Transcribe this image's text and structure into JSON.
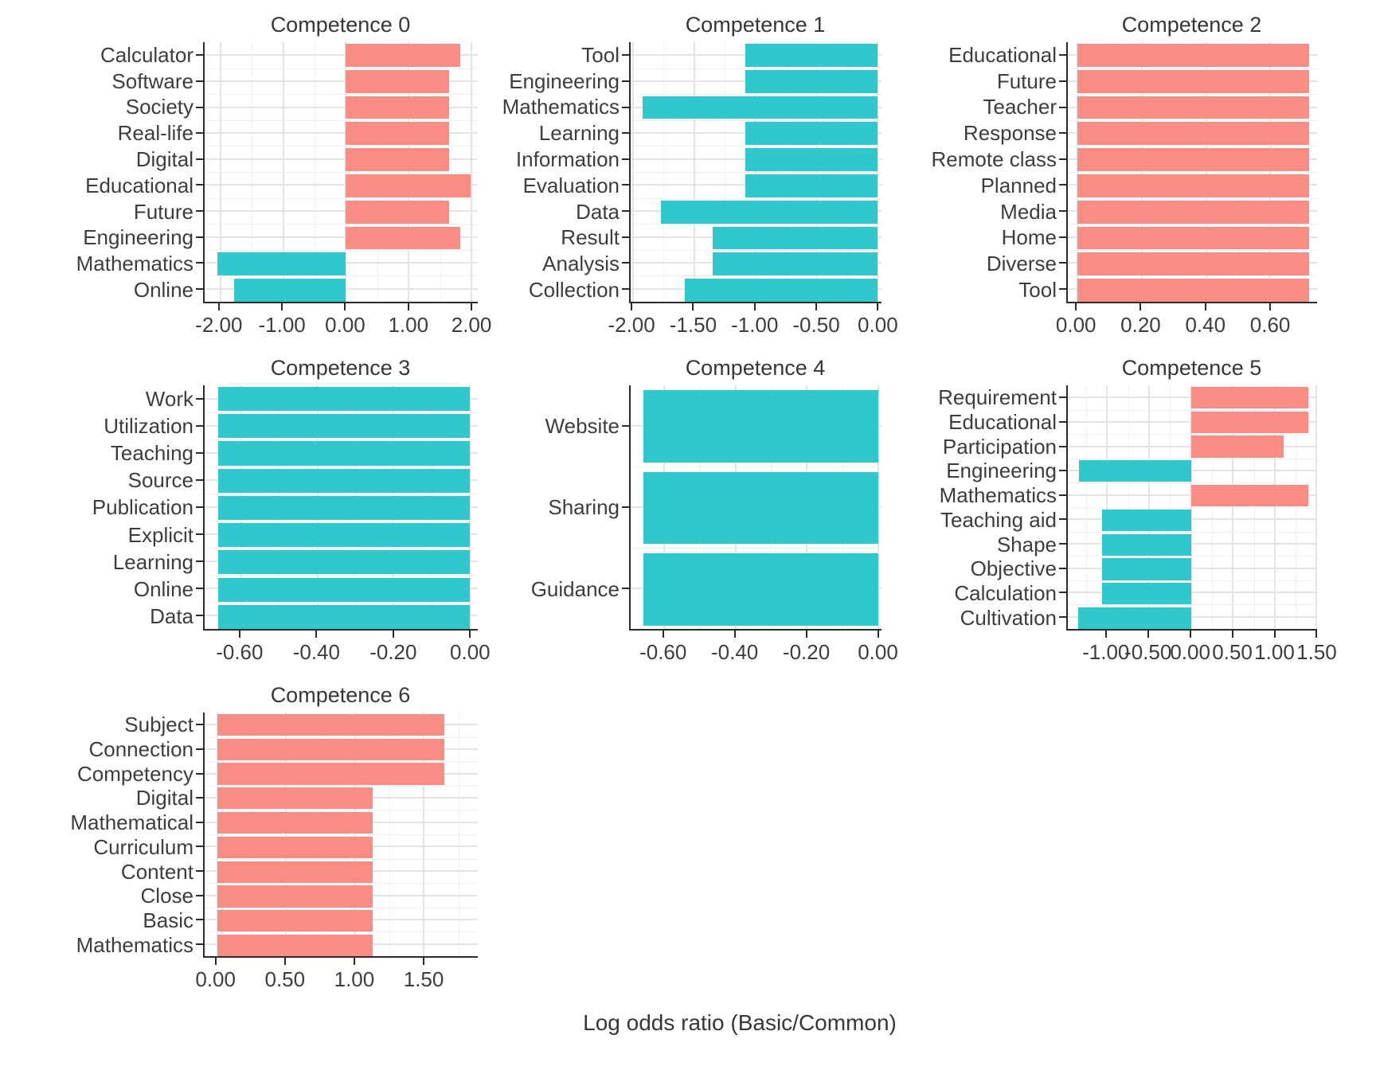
{
  "axis_label": "Log odds ratio (Basic/Common)",
  "colors": {
    "positive": "#F98D86",
    "negative": "#2FC8CD",
    "grid_major": "#E3E3E3",
    "grid_minor": "#EFEFEF",
    "axis_line": "#2B2B2B",
    "text": "#3D3D3D"
  },
  "chart_data": [
    {
      "type": "bar",
      "orientation": "horizontal",
      "title": "Competence 0",
      "row": 0,
      "col": 0,
      "categories": [
        "Calculator",
        "Software",
        "Society",
        "Real-life",
        "Digital",
        "Educational",
        "Future",
        "Engineering",
        "Mathematics",
        "Online"
      ],
      "values": [
        1.82,
        1.64,
        1.64,
        1.64,
        1.64,
        1.99,
        1.64,
        1.82,
        -2.05,
        -1.78
      ],
      "xlim": [
        -2.25,
        2.1
      ],
      "xticks": [
        -2.0,
        -1.0,
        0.0,
        1.0,
        2.0
      ],
      "xtick_labels": [
        "-2.00",
        "-1.00",
        "0.00",
        "1.00",
        "2.00"
      ],
      "grid": true
    },
    {
      "type": "bar",
      "orientation": "horizontal",
      "title": "Competence 1",
      "row": 0,
      "col": 1,
      "categories": [
        "Tool",
        "Engineering",
        "Mathematics",
        "Learning",
        "Information",
        "Evaluation",
        "Data",
        "Result",
        "Analysis",
        "Collection"
      ],
      "values": [
        -1.08,
        -1.08,
        -1.92,
        -1.08,
        -1.08,
        -1.08,
        -1.77,
        -1.35,
        -1.35,
        -1.58
      ],
      "xlim": [
        -2.02,
        0.03
      ],
      "xticks": [
        -2.0,
        -1.5,
        -1.0,
        -0.5,
        0.0
      ],
      "xtick_labels": [
        "-2.00",
        "-1.50",
        "-1.00",
        "-0.50",
        "0.00"
      ],
      "grid": true
    },
    {
      "type": "bar",
      "orientation": "horizontal",
      "title": "Competence 2",
      "row": 0,
      "col": 2,
      "categories": [
        "Educational",
        "Future",
        "Teacher",
        "Response",
        "Remote class",
        "Planned",
        "Media",
        "Home",
        "Diverse",
        "Tool"
      ],
      "values": [
        0.72,
        0.72,
        0.72,
        0.72,
        0.72,
        0.72,
        0.72,
        0.72,
        0.72,
        0.72
      ],
      "xlim": [
        -0.03,
        0.745
      ],
      "xticks": [
        0.0,
        0.2,
        0.4,
        0.6
      ],
      "xtick_labels": [
        "0.00",
        "0.20",
        "0.40",
        "0.60"
      ],
      "grid": true
    },
    {
      "type": "bar",
      "orientation": "horizontal",
      "title": "Competence 3",
      "row": 1,
      "col": 0,
      "categories": [
        "Work",
        "Utilization",
        "Teaching",
        "Source",
        "Publication",
        "Explicit",
        "Learning",
        "Online",
        "Data"
      ],
      "values": [
        -0.66,
        -0.66,
        -0.66,
        -0.66,
        -0.66,
        -0.66,
        -0.66,
        -0.66,
        -0.66
      ],
      "xlim": [
        -0.695,
        0.02
      ],
      "xticks": [
        -0.6,
        -0.4,
        -0.2,
        0.0
      ],
      "xtick_labels": [
        "-0.60",
        "-0.40",
        "-0.20",
        "0.00"
      ],
      "grid": true
    },
    {
      "type": "bar",
      "orientation": "horizontal",
      "title": "Competence 4",
      "row": 1,
      "col": 1,
      "categories": [
        "Website",
        "Sharing",
        "Guidance"
      ],
      "values": [
        -0.66,
        -0.66,
        -0.66
      ],
      "xlim": [
        -0.695,
        0.01
      ],
      "xticks": [
        -0.6,
        -0.4,
        -0.2,
        0.0
      ],
      "xtick_labels": [
        "-0.60",
        "-0.40",
        "-0.20",
        "0.00"
      ],
      "grid": true
    },
    {
      "type": "bar",
      "orientation": "horizontal",
      "title": "Competence 5",
      "row": 1,
      "col": 2,
      "categories": [
        "Requirement",
        "Educational",
        "Participation",
        "Engineering",
        "Mathematics",
        "Teaching aid",
        "Shape",
        "Objective",
        "Calculation",
        "Cultivation"
      ],
      "values": [
        1.4,
        1.4,
        1.11,
        -1.34,
        1.4,
        -1.06,
        -1.06,
        -1.06,
        -1.06,
        -1.35
      ],
      "xlim": [
        -1.47,
        1.505
      ],
      "xticks": [
        -1.0,
        -0.5,
        0.0,
        0.5,
        1.0,
        1.5
      ],
      "xtick_labels": [
        "-1.00",
        "-0.50",
        "0.00",
        "0.50",
        "1.00",
        "1.50"
      ],
      "grid": true
    },
    {
      "type": "bar",
      "orientation": "horizontal",
      "title": "Competence 6",
      "row": 2,
      "col": 0,
      "categories": [
        "Subject",
        "Connection",
        "Competency",
        "Digital",
        "Mathematical",
        "Curriculum",
        "Content",
        "Close",
        "Basic",
        "Mathematics"
      ],
      "values": [
        1.65,
        1.65,
        1.65,
        1.13,
        1.13,
        1.13,
        1.13,
        1.13,
        1.13,
        1.13
      ],
      "xlim": [
        -0.09,
        1.89
      ],
      "xticks": [
        0.0,
        0.5,
        1.0,
        1.5
      ],
      "xtick_labels": [
        "0.00",
        "0.50",
        "1.00",
        "1.50"
      ],
      "grid": true
    }
  ]
}
